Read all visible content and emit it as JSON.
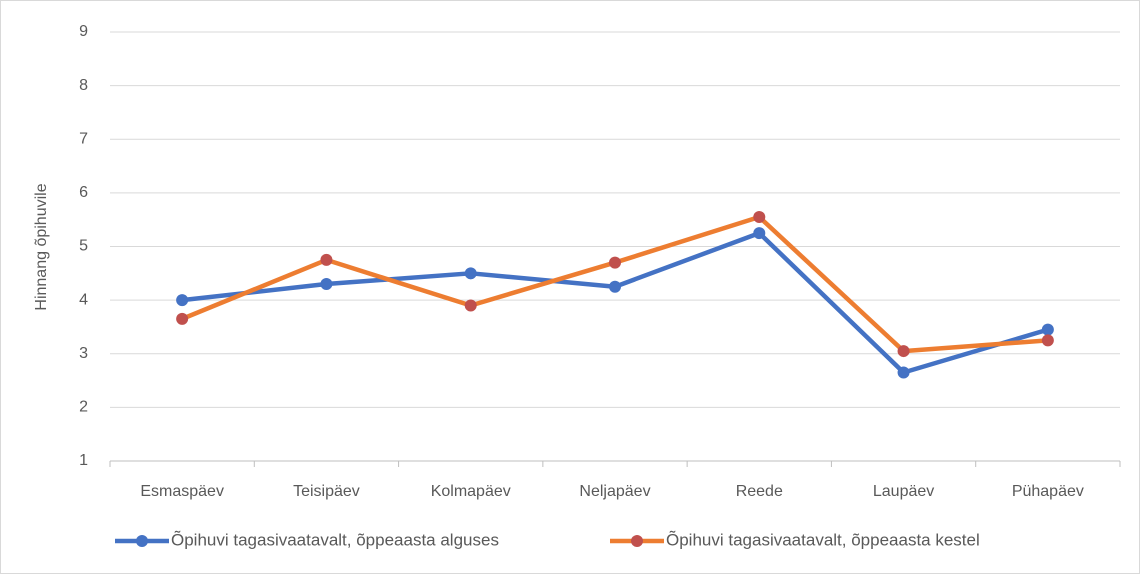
{
  "chart_data": {
    "type": "line",
    "y_label": "Hinnang õpihuvile",
    "categories": [
      "Esmaspäev",
      "Teisipäev",
      "Kolmapäev",
      "Neljapäev",
      "Reede",
      "Laupäev",
      "Pühapäev"
    ],
    "series": [
      {
        "name": "Õpihuvi tagasivaatavalt, õppeaasta alguses",
        "color": "#4472c4",
        "marker_color": "#4472c4",
        "values": [
          4.0,
          4.3,
          4.5,
          4.25,
          5.25,
          2.65,
          3.45
        ]
      },
      {
        "name": "Õpihuvi tagasivaatavalt, õppeaasta kestel",
        "color": "#ed7d31",
        "marker_color": "#c0504d",
        "values": [
          3.65,
          4.75,
          3.9,
          4.7,
          5.55,
          3.05,
          3.25
        ]
      }
    ],
    "ylim": [
      1,
      9
    ],
    "yticks": [
      1,
      2,
      3,
      4,
      5,
      6,
      7,
      8,
      9
    ],
    "grid": true,
    "legend": "bottom"
  }
}
